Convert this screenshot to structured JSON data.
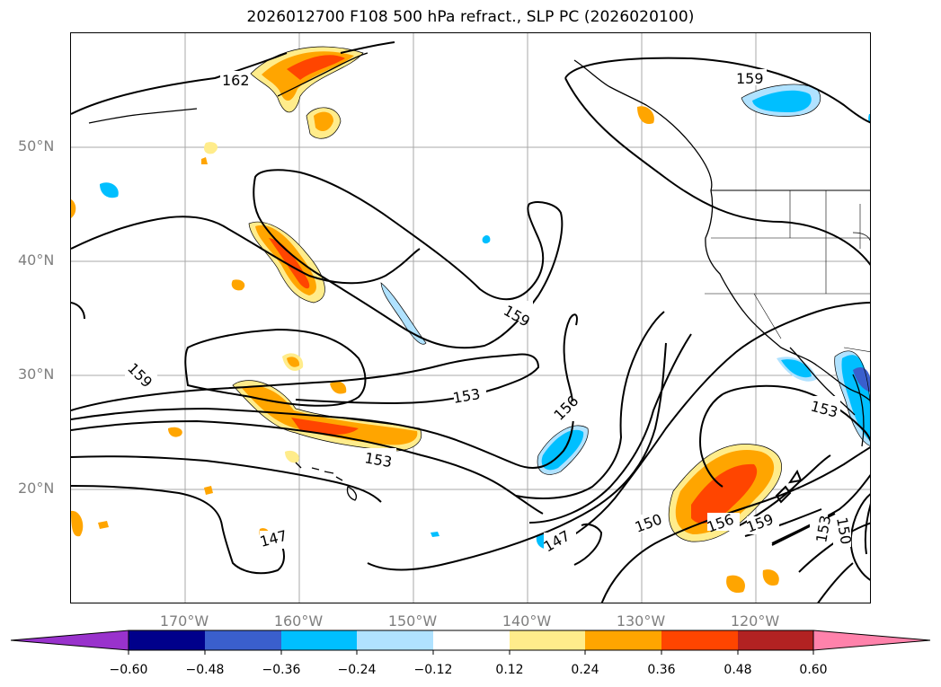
{
  "title": "2026012700 F108 500 hPa refract., SLP PC (2026020100)",
  "map": {
    "lat_labels": [
      "50°N",
      "40°N",
      "30°N",
      "20°N"
    ],
    "lon_labels": [
      "170°W",
      "160°W",
      "150°W",
      "140°W",
      "130°W",
      "120°W"
    ],
    "contour_labels": [
      "162",
      "159",
      "159",
      "159",
      "153",
      "153",
      "156",
      "153",
      "147",
      "147",
      "150",
      "156",
      "159",
      "153",
      "150"
    ]
  },
  "colorbar": {
    "ticks": [
      "−0.60",
      "−0.48",
      "−0.36",
      "−0.24",
      "−0.12",
      "0.12",
      "0.24",
      "0.36",
      "0.48",
      "0.60"
    ],
    "colors": [
      "#9932cc",
      "#00008b",
      "#3a5fcd",
      "#00bfff",
      "#b0e2ff",
      "#ffffff",
      "#ffec8b",
      "#ffa500",
      "#ff4500",
      "#b22222",
      "#ff82ab"
    ]
  }
}
